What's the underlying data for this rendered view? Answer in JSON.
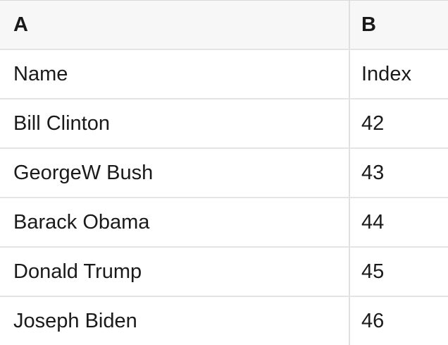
{
  "spreadsheet": {
    "column_headers": [
      {
        "label": "A"
      },
      {
        "label": "B"
      }
    ],
    "rows": [
      {
        "a": "Name",
        "b": "Index"
      },
      {
        "a": "Bill Clinton",
        "b": "42"
      },
      {
        "a": "GeorgeW Bush",
        "b": "43"
      },
      {
        "a": "Barack Obama",
        "b": "44"
      },
      {
        "a": "Donald Trump",
        "b": "45"
      },
      {
        "a": "Joseph Biden",
        "b": "46"
      }
    ],
    "colors": {
      "header_background": "#f7f7f7",
      "grid_line": "#e4e4e4",
      "column_divider": "#e0e0e0",
      "top_border": "#d9d9d9",
      "text": "#1a1a1a",
      "cell_background": "#ffffff"
    }
  }
}
